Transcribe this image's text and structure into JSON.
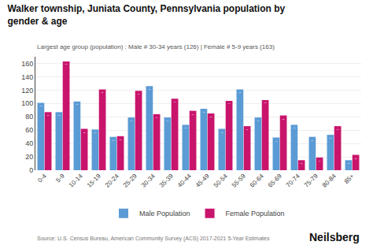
{
  "chart_data": {
    "type": "bar",
    "title": "Walker township, Juniata County, Pennsylvania population by\ngender & age",
    "subtitle": "Largest age group (population) : Male # 30-34 years (126) | Female # 5-9 years (163)",
    "annotations": [
      "Source: U.S. Census Bureau, American Community Survey (ACS) 2017-2021 5-Year Estimates",
      "Neilsberg"
    ],
    "categories": [
      "0-4",
      "5-9",
      "10-14",
      "15-19",
      "20-24",
      "25-29",
      "30-34",
      "35-39",
      "40-44",
      "45-49",
      "50-54",
      "55-59",
      "60-64",
      "65-69",
      "70-74",
      "75-79",
      "80-84",
      "85+"
    ],
    "series": [
      {
        "name": "Male Population",
        "color": "#5B9BD5",
        "values": [
          101,
          87,
          103,
          61,
          50,
          79,
          126,
          79,
          68,
          92,
          62,
          121,
          79,
          49,
          68,
          50,
          53,
          15
        ]
      },
      {
        "name": "Female Population",
        "color": "#C9146C",
        "values": [
          87,
          163,
          62,
          121,
          51,
          119,
          84,
          107,
          89,
          85,
          104,
          66,
          105,
          82,
          15,
          19,
          66,
          23
        ]
      }
    ],
    "ylim": [
      0,
      170
    ],
    "yticks": [
      0,
      20,
      40,
      60,
      80,
      100,
      120,
      140,
      160
    ],
    "grid": true,
    "legend": "bottom",
    "data_labels": true
  }
}
